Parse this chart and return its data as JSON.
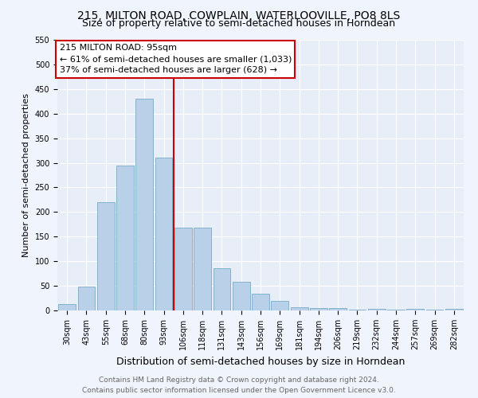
{
  "title": "215, MILTON ROAD, COWPLAIN, WATERLOOVILLE, PO8 8LS",
  "subtitle": "Size of property relative to semi-detached houses in Horndean",
  "xlabel": "Distribution of semi-detached houses by size in Horndean",
  "ylabel": "Number of semi-detached properties",
  "categories": [
    "30sqm",
    "43sqm",
    "55sqm",
    "68sqm",
    "80sqm",
    "93sqm",
    "106sqm",
    "118sqm",
    "131sqm",
    "143sqm",
    "156sqm",
    "169sqm",
    "181sqm",
    "194sqm",
    "206sqm",
    "219sqm",
    "232sqm",
    "244sqm",
    "257sqm",
    "269sqm",
    "282sqm"
  ],
  "values": [
    13,
    48,
    220,
    295,
    430,
    310,
    168,
    168,
    85,
    58,
    34,
    20,
    7,
    5,
    5,
    2,
    3,
    2,
    3,
    2,
    3
  ],
  "bar_color": "#b8d0e8",
  "bar_edge_color": "#7aaac8",
  "vline_index": 5,
  "annotation_line1": "215 MILTON ROAD: 95sqm",
  "annotation_line2": "← 61% of semi-detached houses are smaller (1,033)",
  "annotation_line3": "37% of semi-detached houses are larger (628) →",
  "annotation_box_facecolor": "#ffffff",
  "annotation_box_edgecolor": "#cc0000",
  "ylim": [
    0,
    550
  ],
  "yticks": [
    0,
    50,
    100,
    150,
    200,
    250,
    300,
    350,
    400,
    450,
    500,
    550
  ],
  "plot_bg_color": "#e8eef8",
  "fig_bg_color": "#f0f4fc",
  "footer_line1": "Contains HM Land Registry data © Crown copyright and database right 2024.",
  "footer_line2": "Contains public sector information licensed under the Open Government Licence v3.0.",
  "title_fontsize": 10,
  "subtitle_fontsize": 9,
  "ylabel_fontsize": 8,
  "xlabel_fontsize": 9,
  "tick_fontsize": 7,
  "annot_fontsize": 8,
  "footer_fontsize": 6.5
}
